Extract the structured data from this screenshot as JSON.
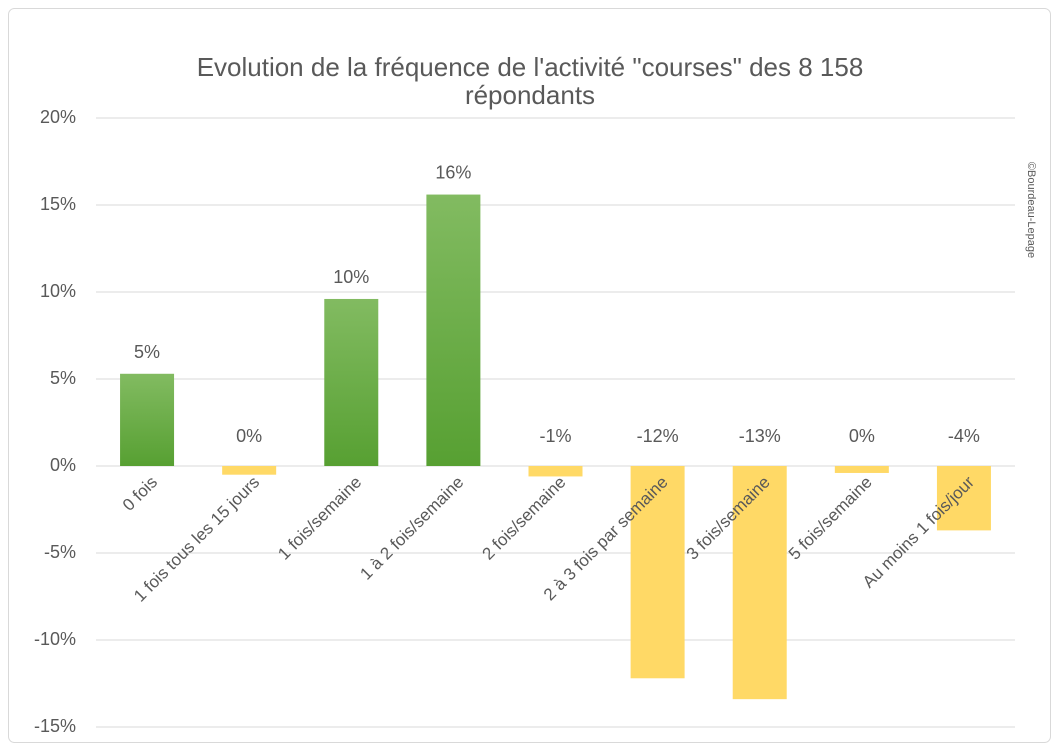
{
  "chart_data": {
    "type": "bar",
    "title": "Evolution de la fréquence de l'activité \"courses\" des 8 158 répondants",
    "watermark": "©Bourdeau-Lepage",
    "categories": [
      "0 fois",
      "1 fois tous les 15 jours",
      "1 fois/semaine",
      "1 à 2 fois/semaine",
      "2 fois/semaine",
      "2 à 3 fois par semaine",
      "3 fois/semaine",
      "5 fois/semaine",
      "Au moins 1 fois/jour"
    ],
    "values": [
      5.3,
      -0.5,
      9.6,
      15.6,
      -0.6,
      -12.2,
      -13.4,
      -0.4,
      -3.7
    ],
    "value_labels": [
      "5%",
      "0%",
      "10%",
      "16%",
      "-1%",
      "-12%",
      "-13%",
      "0%",
      "-4%"
    ],
    "color_positive": "#6aaa44",
    "color_negative": "#ffd966",
    "ylim": [
      -15,
      20
    ],
    "yticks": [
      {
        "value": -15,
        "label": "-15%"
      },
      {
        "value": -10,
        "label": "-10%"
      },
      {
        "value": -5,
        "label": "-5%"
      },
      {
        "value": 0,
        "label": "0%"
      },
      {
        "value": 5,
        "label": "5%"
      },
      {
        "value": 10,
        "label": "10%"
      },
      {
        "value": 15,
        "label": "15%"
      },
      {
        "value": 20,
        "label": "20%"
      }
    ],
    "grid": true
  }
}
